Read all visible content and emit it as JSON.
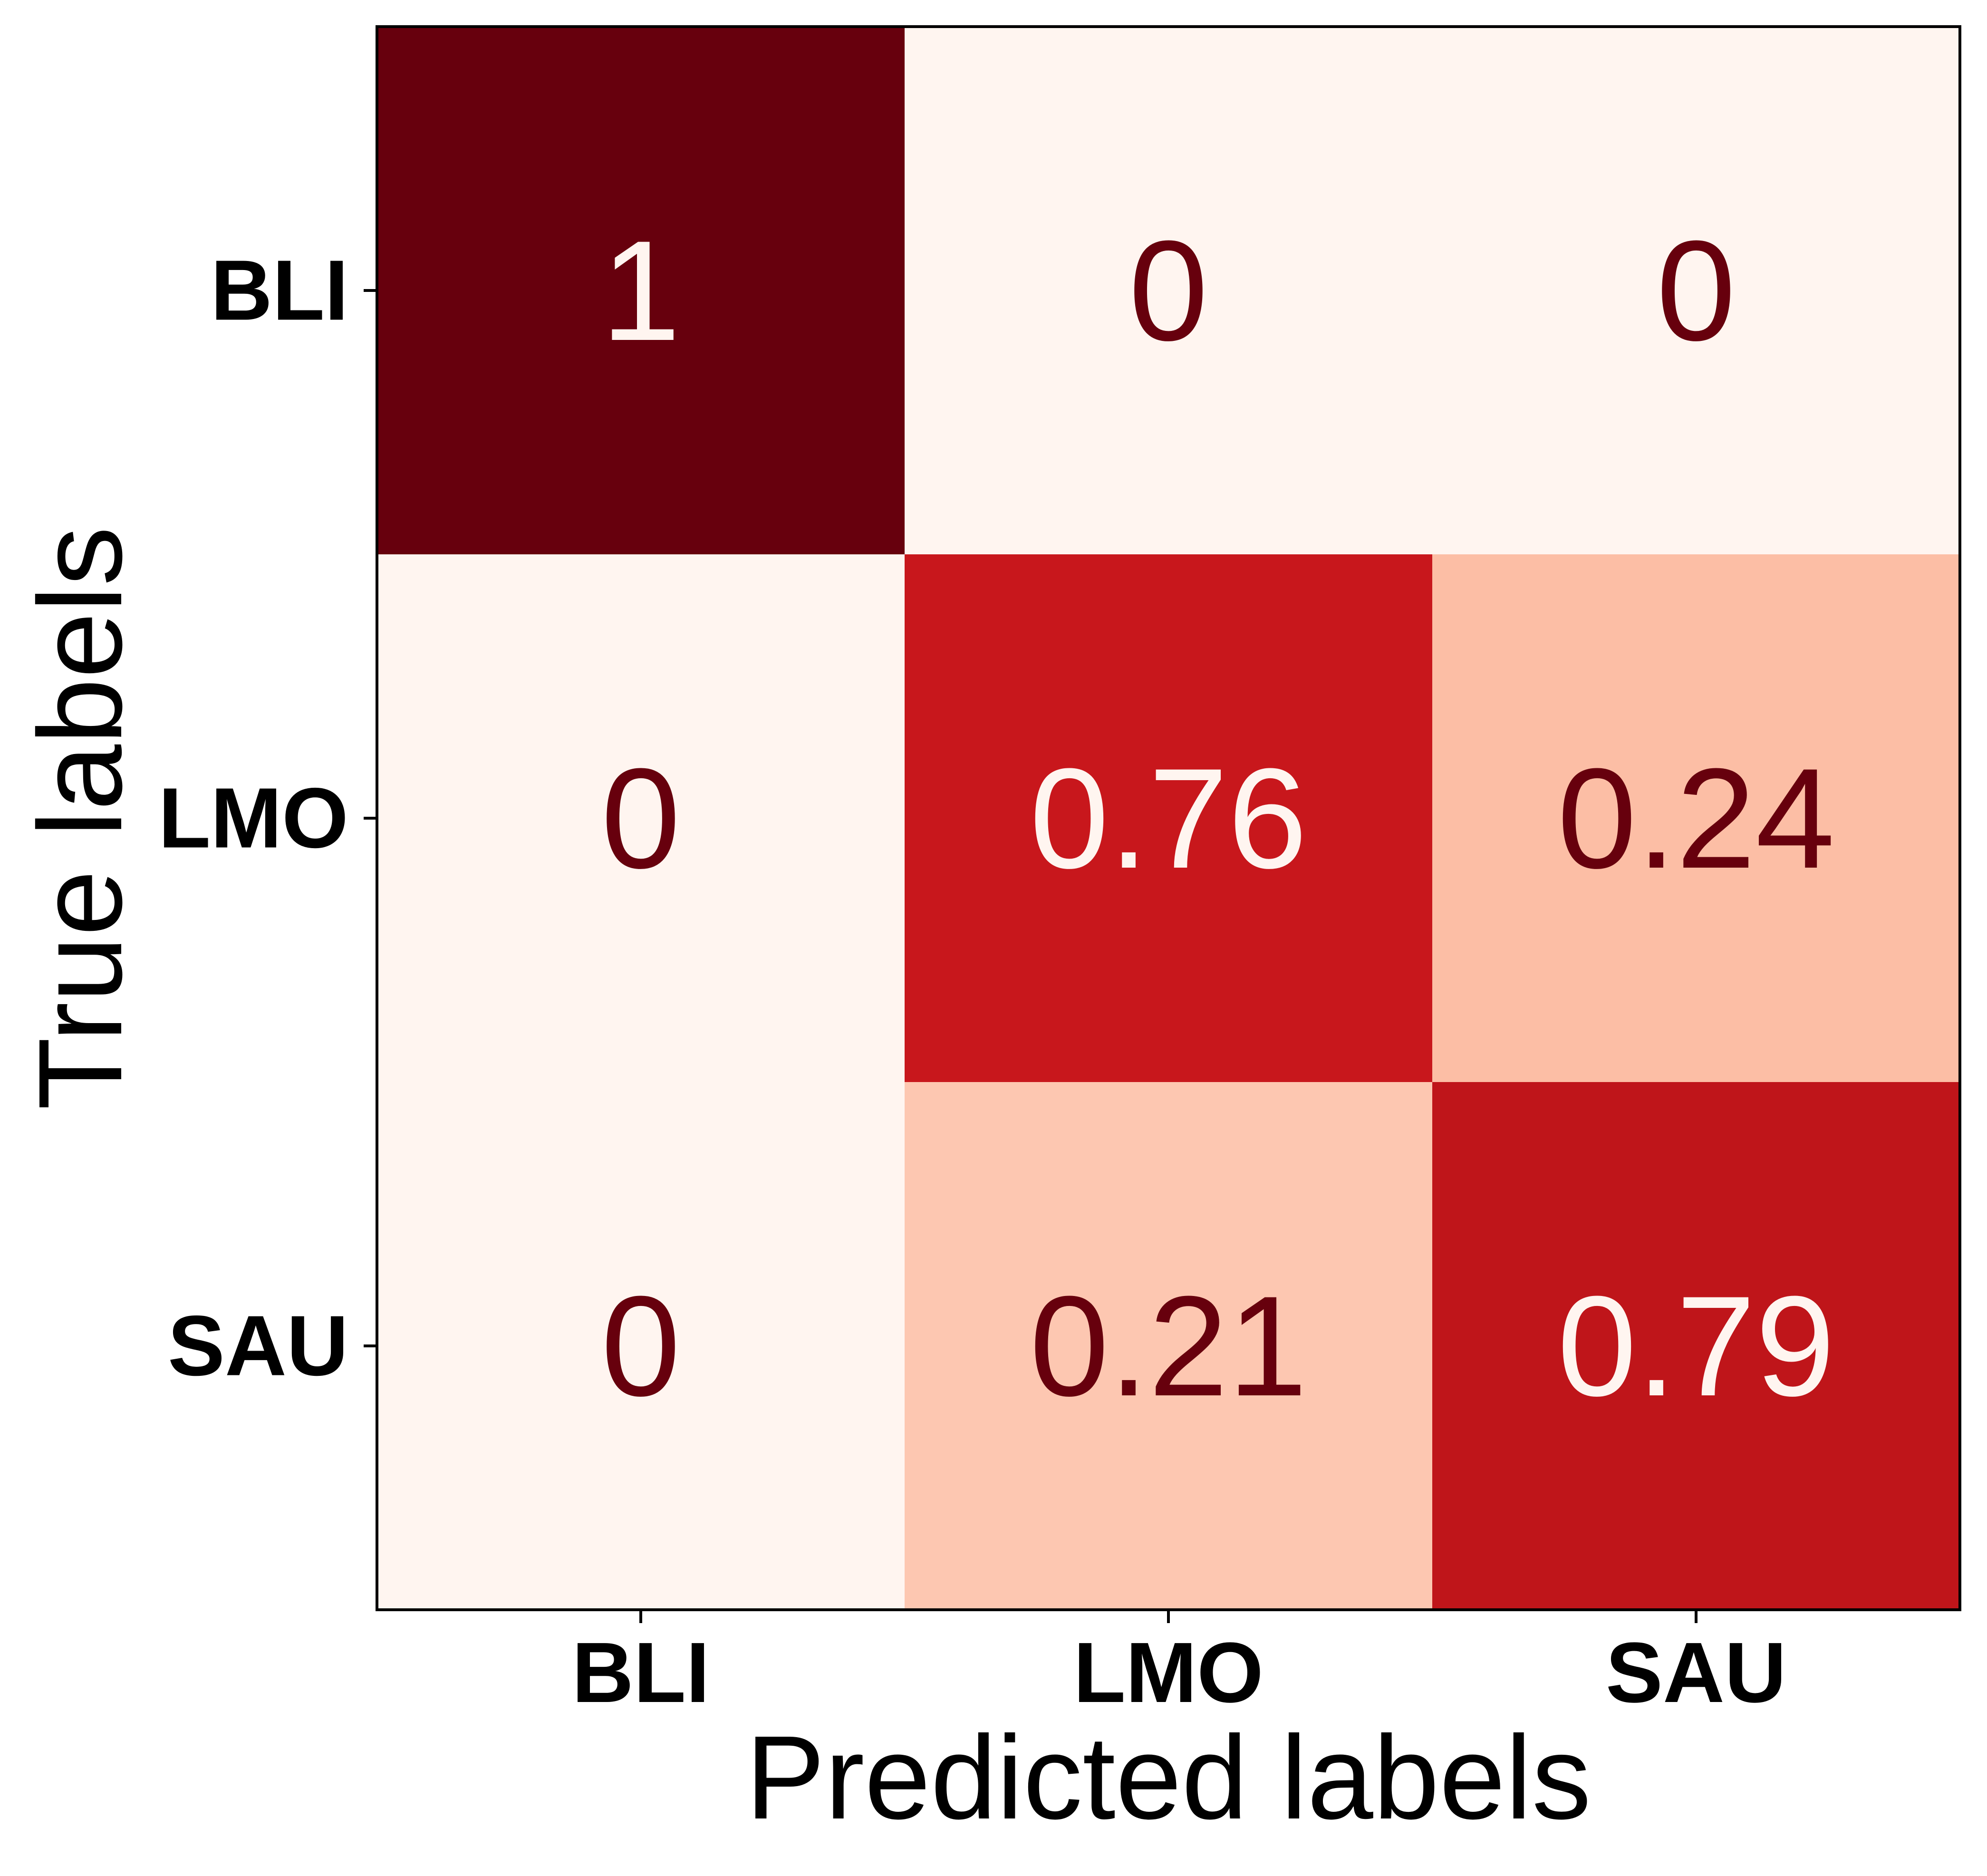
{
  "chart_data": {
    "type": "heatmap",
    "title": "",
    "xlabel": "Predicted labels",
    "ylabel": "True labels",
    "x_categories": [
      "BLI",
      "LMO",
      "SAU"
    ],
    "y_categories": [
      "BLI",
      "LMO",
      "SAU"
    ],
    "values": [
      [
        1,
        0,
        0
      ],
      [
        0,
        0.76,
        0.24
      ],
      [
        0,
        0.21,
        0.79
      ]
    ],
    "value_labels": [
      [
        "1",
        "0",
        "0"
      ],
      [
        "0",
        "0.76",
        "0.24"
      ],
      [
        "0",
        "0.21",
        "0.79"
      ]
    ],
    "value_range": [
      0,
      1
    ],
    "colormap": "Reds",
    "colors": {
      "low": "#fff5f0",
      "high": "#67000d",
      "text_light": "#fff5f0",
      "text_dark": "#67000d"
    },
    "grid": false,
    "colorbar": false
  }
}
